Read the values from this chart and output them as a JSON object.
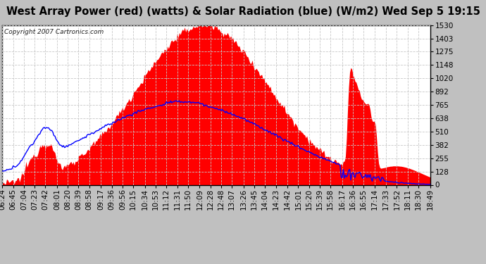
{
  "title": "West Array Power (red) (watts) & Solar Radiation (blue) (W/m2) Wed Sep 5 19:15",
  "copyright": "Copyright 2007 Cartronics.com",
  "background_color": "#c0c0c0",
  "plot_bg_color": "#ffffff",
  "grid_color": "#c8c8c8",
  "title_color": "#000000",
  "y_max": 1530.1,
  "y_ticks": [
    0.0,
    127.5,
    255.0,
    382.5,
    510.0,
    637.5,
    765.0,
    892.5,
    1020.1,
    1147.6,
    1275.1,
    1402.6,
    1530.1
  ],
  "x_tick_labels": [
    "06:24",
    "06:45",
    "07:04",
    "07:23",
    "07:42",
    "08:01",
    "08:20",
    "08:39",
    "08:58",
    "09:17",
    "09:36",
    "09:56",
    "10:15",
    "10:34",
    "10:53",
    "11:12",
    "11:31",
    "11:50",
    "12:09",
    "12:28",
    "12:48",
    "13:07",
    "13:26",
    "13:45",
    "14:04",
    "14:23",
    "14:42",
    "15:01",
    "15:20",
    "15:39",
    "15:58",
    "16:17",
    "16:36",
    "16:55",
    "17:14",
    "17:33",
    "17:52",
    "18:11",
    "18:30",
    "18:49"
  ],
  "red_fill_color": "#ff0000",
  "blue_line_color": "#0000ff",
  "title_fontsize": 10.5,
  "tick_fontsize": 7.5,
  "copyright_fontsize": 6.5
}
